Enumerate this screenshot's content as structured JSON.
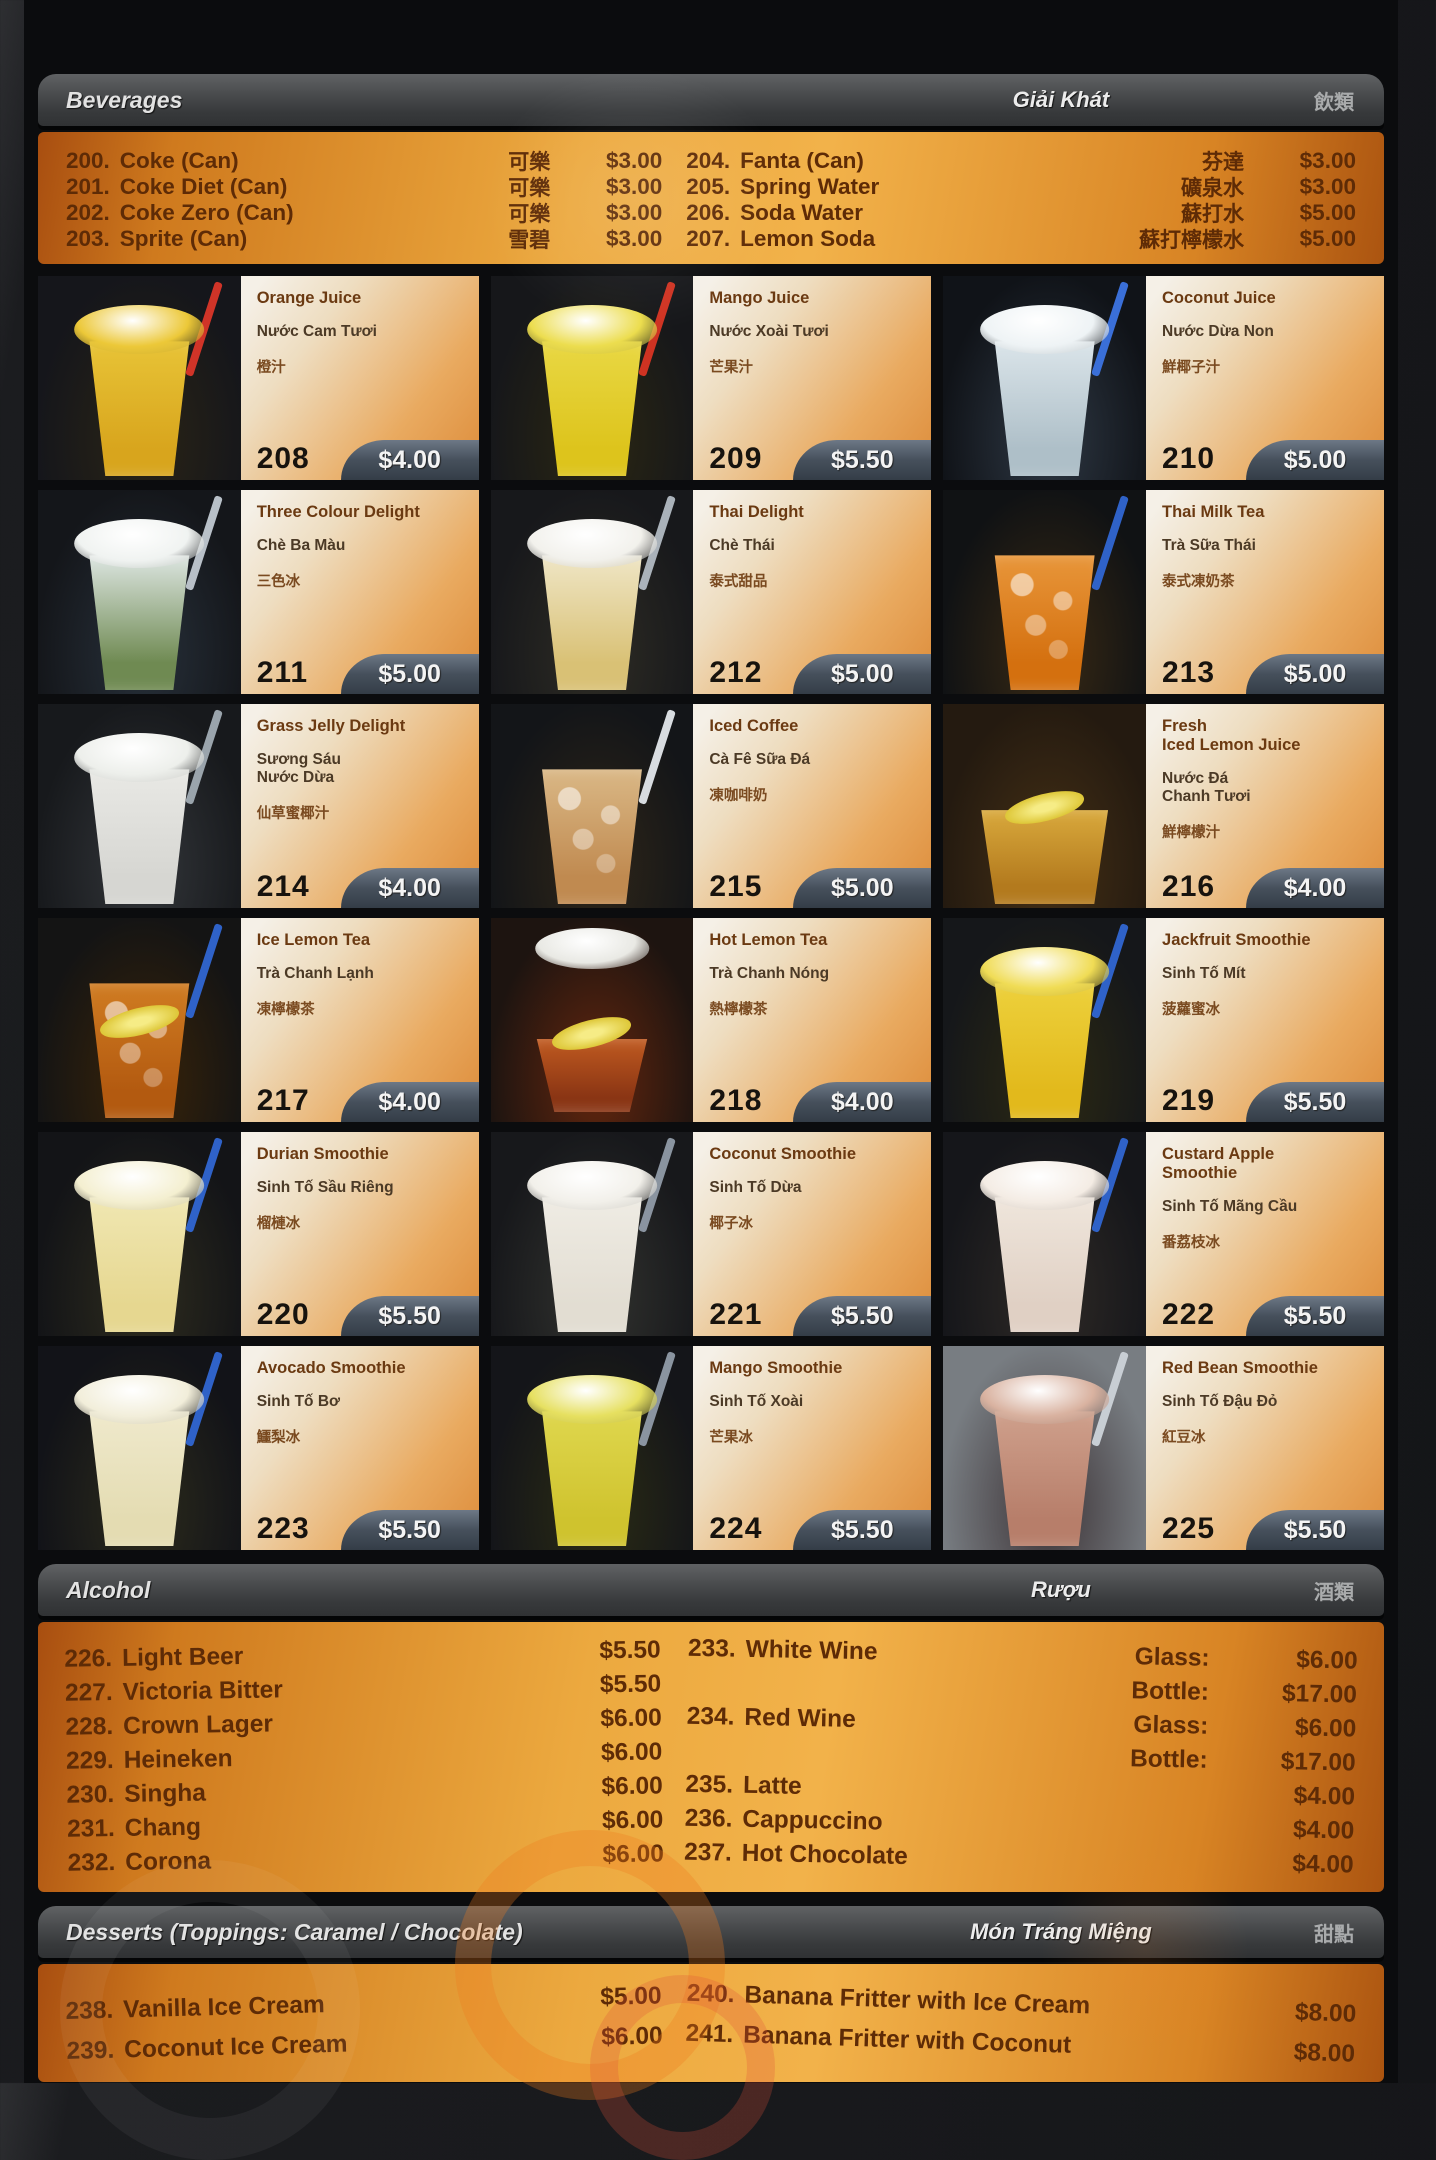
{
  "colors": {
    "board_bg": "#0b0c0e",
    "bar_bg": "#46484a",
    "orange_start": "#a84e10",
    "orange_mid": "#f2b24a",
    "item_text": "#5e2b06",
    "price_chip_bg": "#46505c",
    "price_chip_text": "#f4f4f4"
  },
  "beverages": {
    "header": {
      "left": "Beverages",
      "mid": "Giải Khát",
      "right": "飲類"
    },
    "items_left": [
      {
        "num": "200.",
        "name": "Coke (Can)",
        "zh": "可樂",
        "price": "$3.00"
      },
      {
        "num": "201.",
        "name": "Coke Diet (Can)",
        "zh": "可樂",
        "price": "$3.00"
      },
      {
        "num": "202.",
        "name": "Coke Zero (Can)",
        "zh": "可樂",
        "price": "$3.00"
      },
      {
        "num": "203.",
        "name": "Sprite (Can)",
        "zh": "雪碧",
        "price": "$3.00"
      }
    ],
    "items_right": [
      {
        "num": "204.",
        "name": "Fanta  (Can)",
        "zh": "芬達",
        "price": "$3.00"
      },
      {
        "num": "205.",
        "name": "Spring Water",
        "zh": "礦泉水",
        "price": "$3.00"
      },
      {
        "num": "206.",
        "name": "Soda Water",
        "zh": "蘇打水",
        "price": "$5.00"
      },
      {
        "num": "207.",
        "name": "Lemon Soda",
        "zh": "蘇打檸檬水",
        "price": "$5.00"
      }
    ]
  },
  "cards": [
    {
      "num": "208",
      "name": "Orange Juice",
      "vi": "Nước Cam Tươi",
      "zh": "橙汁",
      "price": "$4.00",
      "photo": {
        "bg": "#15161b",
        "bg2": "#2a2415",
        "liquid": "#d8a51d",
        "liquid_top": "#e8c437",
        "dome": true,
        "dome_color": "#ecc838",
        "straw": "#d03428",
        "shape": "tall"
      }
    },
    {
      "num": "209",
      "name": "Mango Juice",
      "vi": "Nước Xoài Tươi",
      "zh": "芒果汁",
      "price": "$5.50",
      "photo": {
        "bg": "#16171a",
        "bg2": "#2b2712",
        "liquid": "#ddc41c",
        "liquid_top": "#e9d844",
        "dome": true,
        "dome_color": "#ecdd4e",
        "straw": "#cf3322",
        "shape": "tall"
      }
    },
    {
      "num": "210",
      "name": "Coconut Juice",
      "vi": "Nước Dừa Non",
      "zh": "鮮椰子汁",
      "price": "$5.00",
      "photo": {
        "bg": "#101318",
        "bg2": "#2e3844",
        "liquid": "#aebfc8",
        "liquid_top": "#dbe5ea",
        "dome": true,
        "dome_color": "#eef3f5",
        "straw": "#3a6fd8",
        "shape": "tall"
      }
    },
    {
      "num": "211",
      "name": "Three Colour Delight",
      "vi": "Chè Ba Màu",
      "zh": "三色冰",
      "price": "$5.00",
      "photo": {
        "bg": "#14161a",
        "bg2": "#27303a",
        "liquid": "#6f8a52",
        "liquid_top": "#dde6e2",
        "dome": true,
        "dome_color": "#f0f3f1",
        "straw": "#b8c0c8",
        "shape": "tall"
      }
    },
    {
      "num": "212",
      "name": "Thai Delight",
      "vi": "Chè Thái",
      "zh": "泰式甜品",
      "price": "$5.00",
      "photo": {
        "bg": "#17181b",
        "bg2": "#2e2c24",
        "liquid": "#d9c175",
        "liquid_top": "#efe6c6",
        "dome": true,
        "dome_color": "#f2f1ec",
        "straw": "#aab2ba",
        "shape": "tall"
      }
    },
    {
      "num": "213",
      "name": "Thai Milk Tea",
      "vi": "Trà Sữa Thái",
      "zh": "泰式凍奶茶",
      "price": "$5.00",
      "photo": {
        "bg": "#101214",
        "bg2": "#3a2a14",
        "liquid": "#d4700f",
        "liquid_top": "#e8963a",
        "dome": false,
        "ice": true,
        "straw": "#2f62c8",
        "shape": "tall"
      }
    },
    {
      "num": "214",
      "name": "Grass Jelly Delight",
      "vi": "Sương Sáu\nNước Dừa",
      "zh": "仙草蜜椰汁",
      "price": "$4.00",
      "photo": {
        "bg": "#17191c",
        "bg2": "#33363a",
        "liquid": "#d6d6d2",
        "liquid_top": "#e9e9e5",
        "dome": true,
        "dome_color": "#edefeb",
        "straw": "#9aa4ac",
        "shape": "tall"
      }
    },
    {
      "num": "215",
      "name": "Iced Coffee",
      "vi": "Cà Fê Sữa Đá",
      "zh": "凍咖啡奶",
      "price": "$5.00",
      "photo": {
        "bg": "#131518",
        "bg2": "#2f2619",
        "liquid": "#c08a50",
        "liquid_top": "#dab886",
        "dome": false,
        "ice": true,
        "straw": "#d8dce0",
        "shape": "tall"
      }
    },
    {
      "num": "216",
      "name": "Fresh\nIced Lemon Juice",
      "vi": "Nước Đá\nChanh Tươi",
      "zh": "鮮檸檬汁",
      "price": "$4.00",
      "photo": {
        "bg": "#241a10",
        "bg2": "#453015",
        "liquid": "#b37a1e",
        "liquid_top": "#d9a93c",
        "dome": false,
        "lemon": true,
        "straw": null,
        "shape": "short"
      }
    },
    {
      "num": "217",
      "name": "Ice Lemon Tea",
      "vi": "Trà Chanh Lạnh",
      "zh": "凍檸檬茶",
      "price": "$4.00",
      "photo": {
        "bg": "#141414",
        "bg2": "#3a2408",
        "liquid": "#b35a10",
        "liquid_top": "#d07c22",
        "dome": false,
        "ice": true,
        "lemon": true,
        "straw": "#2f62c8",
        "shape": "tall"
      }
    },
    {
      "num": "218",
      "name": "Hot Lemon Tea",
      "vi": "Trà Chanh Nóng",
      "zh": "熱檸檬茶",
      "price": "$4.00",
      "photo": {
        "bg": "#1d1410",
        "bg2": "#64260e",
        "liquid": "#8a3514",
        "liquid_top": "#c05a20",
        "dome": true,
        "dome_color": "#e9e9e4",
        "lemon": true,
        "straw": null,
        "shape": "mug"
      }
    },
    {
      "num": "219",
      "name": "Jackfruit Smoothie",
      "vi": "Sinh Tố Mít",
      "zh": "菠蘿蜜冰",
      "price": "$5.50",
      "photo": {
        "bg": "#15171a",
        "bg2": "#2d2a12",
        "liquid": "#e2b91c",
        "liquid_top": "#edd13c",
        "dome": true,
        "dome_color": "#f0dc55",
        "straw": "#2f62c8",
        "shape": "tall"
      }
    },
    {
      "num": "220",
      "name": "Durian Smoothie",
      "vi": "Sinh Tố Sầu Riêng",
      "zh": "榴槤冰",
      "price": "$5.50",
      "photo": {
        "bg": "#131417",
        "bg2": "#2e2c1e",
        "liquid": "#e6d790",
        "liquid_top": "#f0e7b2",
        "dome": true,
        "dome_color": "#f4efd0",
        "straw": "#2f62c8",
        "shape": "tall"
      }
    },
    {
      "num": "221",
      "name": "Coconut Smoothie",
      "vi": "Sinh Tố Dừa",
      "zh": "椰子冰",
      "price": "$5.50",
      "photo": {
        "bg": "#17181b",
        "bg2": "#32332f",
        "liquid": "#e2ddd2",
        "liquid_top": "#efece4",
        "dome": true,
        "dome_color": "#f2f0ea",
        "straw": "#8a94a0",
        "shape": "tall"
      }
    },
    {
      "num": "222",
      "name": "Custard Apple\nSmoothie",
      "vi": "Sinh Tố Mãng Cầu",
      "zh": "番荔枝冰",
      "price": "$5.50",
      "photo": {
        "bg": "#15161a",
        "bg2": "#2f2a26",
        "liquid": "#e0d0c4",
        "liquid_top": "#efe6dc",
        "dome": true,
        "dome_color": "#f4ece4",
        "straw": "#2f62c8",
        "shape": "tall"
      }
    },
    {
      "num": "223",
      "name": "Avocado Smoothie",
      "vi": "Sinh Tố Bơ",
      "zh": "鱷梨冰",
      "price": "$5.50",
      "photo": {
        "bg": "#121318",
        "bg2": "#2c2b1c",
        "liquid": "#e4dcb2",
        "liquid_top": "#efe9cc",
        "dome": true,
        "dome_color": "#f2eeda",
        "straw": "#2f62c8",
        "shape": "tall"
      }
    },
    {
      "num": "224",
      "name": "Mango Smoothie",
      "vi": "Sinh Tố Xoài",
      "zh": "芒果冰",
      "price": "$5.50",
      "photo": {
        "bg": "#141519",
        "bg2": "#2b2c14",
        "liquid": "#cfc32e",
        "liquid_top": "#dfd74e",
        "dome": true,
        "dome_color": "#e6e060",
        "straw": "#8a94a0",
        "shape": "tall"
      }
    },
    {
      "num": "225",
      "name": "Red Bean Smoothie",
      "vi": "Sinh Tố Đậu Đỏ",
      "zh": "紅豆冰",
      "price": "$5.50",
      "photo": {
        "bg": "#787d82",
        "bg2": "#3c3336",
        "liquid": "#b77e6a",
        "liquid_top": "#cfa08c",
        "dome": true,
        "dome_color": "#d9b2a0",
        "straw": "#c8ced4",
        "shape": "tall"
      }
    }
  ],
  "alcohol": {
    "header": {
      "left": "Alcohol",
      "mid": "Rượu",
      "right": "酒類"
    },
    "items_left": [
      {
        "num": "226.",
        "name": "Light Beer",
        "price": "$5.50"
      },
      {
        "num": "227.",
        "name": "Victoria Bitter",
        "price": "$5.50"
      },
      {
        "num": "228.",
        "name": "Crown Lager",
        "price": "$6.00"
      },
      {
        "num": "229.",
        "name": "Heineken",
        "price": "$6.00"
      },
      {
        "num": "230.",
        "name": "Singha",
        "price": "$6.00"
      },
      {
        "num": "231.",
        "name": "Chang",
        "price": "$6.00"
      },
      {
        "num": "232.",
        "name": "Corona",
        "price": "$6.00"
      }
    ],
    "items_right": [
      {
        "num": "233.",
        "name": "White Wine",
        "lines": [
          {
            "label": "Glass:",
            "price": "$6.00"
          },
          {
            "label": "Bottle:",
            "price": "$17.00"
          }
        ]
      },
      {
        "num": "234.",
        "name": "Red Wine",
        "lines": [
          {
            "label": "Glass:",
            "price": "$6.00"
          },
          {
            "label": "Bottle:",
            "price": "$17.00"
          }
        ]
      },
      {
        "num": "235.",
        "name": "Latte",
        "lines": [
          {
            "label": "",
            "price": "$4.00"
          }
        ]
      },
      {
        "num": "236.",
        "name": "Cappuccino",
        "lines": [
          {
            "label": "",
            "price": "$4.00"
          }
        ]
      },
      {
        "num": "237.",
        "name": "Hot Chocolate",
        "lines": [
          {
            "label": "",
            "price": "$4.00"
          }
        ]
      }
    ]
  },
  "desserts": {
    "header": {
      "left": "Desserts (Toppings: Caramel / Chocolate)",
      "mid": "Món Tráng Miệng",
      "right": "甜點"
    },
    "items_left": [
      {
        "num": "238.",
        "name": "Vanilla Ice Cream",
        "price": "$5.00"
      },
      {
        "num": "239.",
        "name": "Coconut Ice Cream",
        "price": "$6.00"
      }
    ],
    "items_right": [
      {
        "num": "240.",
        "name": "Banana Fritter with Ice Cream",
        "price": "$8.00"
      },
      {
        "num": "241.",
        "name": "Banana Fritter with Coconut",
        "price": "$8.00"
      }
    ]
  }
}
